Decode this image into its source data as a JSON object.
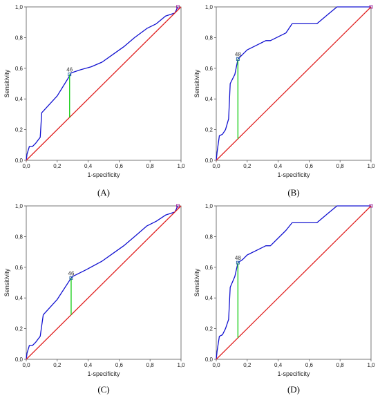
{
  "chart_data": [
    {
      "type": "line",
      "panel_label": "(A)",
      "xlabel": "1-specificity",
      "ylabel": "Sensitivity",
      "xlim": [
        0,
        1
      ],
      "ylim": [
        0,
        1
      ],
      "x_ticks": [
        "0,0",
        "0,2",
        "0,4",
        "0,6",
        "0,8",
        "1,0"
      ],
      "y_ticks": [
        "0,0",
        "0,2",
        "0,4",
        "0,6",
        "0,8",
        "1,0"
      ],
      "grid": false,
      "series": [
        {
          "role": "roc",
          "color": "#1010d0",
          "x": [
            0,
            0.005,
            0.02,
            0.04,
            0.06,
            0.09,
            0.1,
            0.2,
            0.28,
            0.29,
            0.35,
            0.42,
            0.49,
            0.56,
            0.63,
            0.7,
            0.78,
            0.84,
            0.9,
            0.96,
            0.98
          ],
          "y": [
            0,
            0.04,
            0.09,
            0.09,
            0.11,
            0.15,
            0.31,
            0.42,
            0.55,
            0.57,
            0.59,
            0.61,
            0.64,
            0.69,
            0.74,
            0.8,
            0.86,
            0.89,
            0.94,
            0.96,
            1.0
          ]
        },
        {
          "role": "chance",
          "color": "#e02020",
          "x": [
            0,
            1
          ],
          "y": [
            0,
            1
          ]
        }
      ],
      "cutoff": {
        "label": "46",
        "x": 0.28,
        "y_low": 0.28,
        "y_high": 0.56,
        "color": "#20d020"
      }
    },
    {
      "type": "line",
      "panel_label": "(B)",
      "xlabel": "1-specificity",
      "ylabel": "Sensitivity",
      "xlim": [
        0,
        1
      ],
      "ylim": [
        0,
        1
      ],
      "x_ticks": [
        "0,0",
        "0,2",
        "0,4",
        "0,6",
        "0,8",
        "1,0"
      ],
      "y_ticks": [
        "0,0",
        "0,2",
        "0,4",
        "0,6",
        "0,8",
        "1,0"
      ],
      "grid": false,
      "series": [
        {
          "role": "roc",
          "color": "#1010d0",
          "x": [
            0,
            0.005,
            0.02,
            0.04,
            0.06,
            0.08,
            0.09,
            0.12,
            0.14,
            0.17,
            0.2,
            0.28,
            0.32,
            0.35,
            0.45,
            0.49,
            0.56,
            0.65,
            0.72,
            0.78,
            0.9,
            1.0
          ],
          "y": [
            0,
            0.05,
            0.16,
            0.17,
            0.2,
            0.27,
            0.5,
            0.56,
            0.66,
            0.69,
            0.72,
            0.76,
            0.78,
            0.78,
            0.83,
            0.89,
            0.89,
            0.89,
            0.95,
            1.0,
            1.0,
            1.0
          ]
        },
        {
          "role": "chance",
          "color": "#e02020",
          "x": [
            0,
            1
          ],
          "y": [
            0,
            1
          ]
        }
      ],
      "cutoff": {
        "label": "48",
        "x": 0.14,
        "y_low": 0.14,
        "y_high": 0.66,
        "color": "#20d020"
      }
    },
    {
      "type": "line",
      "panel_label": "(C)",
      "xlabel": "1-specificity",
      "ylabel": "Sensitivity",
      "xlim": [
        0,
        1
      ],
      "ylim": [
        0,
        1
      ],
      "x_ticks": [
        "0,0",
        "0,2",
        "0,4",
        "0,6",
        "0,8",
        "1,0"
      ],
      "y_ticks": [
        "0,0",
        "0,2",
        "0,4",
        "0,6",
        "0,8",
        "1,0"
      ],
      "grid": false,
      "series": [
        {
          "role": "roc",
          "color": "#1010d0",
          "x": [
            0,
            0.005,
            0.02,
            0.04,
            0.06,
            0.09,
            0.1,
            0.11,
            0.2,
            0.29,
            0.3,
            0.38,
            0.49,
            0.56,
            0.63,
            0.7,
            0.78,
            0.84,
            0.9,
            0.96,
            0.98
          ],
          "y": [
            0,
            0.04,
            0.09,
            0.09,
            0.11,
            0.15,
            0.22,
            0.29,
            0.39,
            0.53,
            0.54,
            0.58,
            0.64,
            0.69,
            0.74,
            0.8,
            0.87,
            0.9,
            0.94,
            0.96,
            1.0
          ]
        },
        {
          "role": "chance",
          "color": "#e02020",
          "x": [
            0,
            1
          ],
          "y": [
            0,
            1
          ]
        }
      ],
      "cutoff": {
        "label": "46",
        "x": 0.29,
        "y_low": 0.29,
        "y_high": 0.53,
        "color": "#20d020"
      }
    },
    {
      "type": "line",
      "panel_label": "(D)",
      "xlabel": "1-specificity",
      "ylabel": "Sensitivity",
      "xlim": [
        0,
        1
      ],
      "ylim": [
        0,
        1
      ],
      "x_ticks": [
        "0,0",
        "0,2",
        "0,4",
        "0,6",
        "0,8",
        "1,0"
      ],
      "y_ticks": [
        "0,0",
        "0,2",
        "0,4",
        "0,6",
        "0,8",
        "1,0"
      ],
      "grid": false,
      "series": [
        {
          "role": "roc",
          "color": "#1010d0",
          "x": [
            0,
            0.005,
            0.02,
            0.04,
            0.06,
            0.08,
            0.09,
            0.12,
            0.14,
            0.17,
            0.2,
            0.28,
            0.32,
            0.35,
            0.45,
            0.49,
            0.56,
            0.65,
            0.72,
            0.78,
            0.9,
            1.0
          ],
          "y": [
            0,
            0.05,
            0.15,
            0.16,
            0.2,
            0.26,
            0.47,
            0.54,
            0.63,
            0.65,
            0.68,
            0.72,
            0.74,
            0.74,
            0.84,
            0.89,
            0.89,
            0.89,
            0.95,
            1.0,
            1.0,
            1.0
          ]
        },
        {
          "role": "chance",
          "color": "#e02020",
          "x": [
            0,
            1
          ],
          "y": [
            0,
            1
          ]
        }
      ],
      "cutoff": {
        "label": "48",
        "x": 0.14,
        "y_low": 0.14,
        "y_high": 0.63,
        "color": "#20d020"
      }
    }
  ]
}
